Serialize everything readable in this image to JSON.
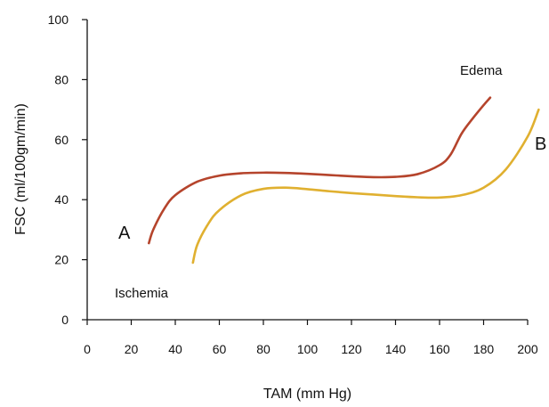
{
  "chart_data": {
    "type": "line",
    "xlabel": "TAM (mm Hg)",
    "ylabel": "FSC (ml/100gm/min)",
    "xlim": [
      0,
      200
    ],
    "ylim": [
      0,
      100
    ],
    "xticks": [
      0,
      20,
      40,
      60,
      80,
      100,
      120,
      140,
      160,
      180,
      200
    ],
    "yticks": [
      0,
      20,
      40,
      60,
      80,
      100
    ],
    "grid": false,
    "legend": "none",
    "series": [
      {
        "name": "A",
        "color": "#b5442c",
        "x": [
          28,
          30,
          35,
          40,
          50,
          60,
          70,
          80,
          90,
          100,
          110,
          120,
          130,
          140,
          150,
          160,
          165,
          170,
          175,
          180,
          183
        ],
        "y": [
          25.5,
          30,
          37,
          41.5,
          46,
          48,
          48.8,
          49,
          48.9,
          48.6,
          48.2,
          47.8,
          47.5,
          47.6,
          48.5,
          51.5,
          55,
          62,
          67,
          71.5,
          74
        ]
      },
      {
        "name": "B",
        "color": "#e0b030",
        "x": [
          48,
          50,
          55,
          60,
          70,
          80,
          90,
          100,
          110,
          120,
          130,
          140,
          150,
          160,
          170,
          180,
          190,
          200,
          205
        ],
        "y": [
          19,
          25,
          32,
          36.5,
          41.5,
          43.6,
          44,
          43.5,
          42.8,
          42.2,
          41.7,
          41.2,
          40.8,
          40.7,
          41.5,
          44,
          50,
          61,
          70
        ]
      }
    ],
    "annotations": [
      {
        "text": "A",
        "size": "large"
      },
      {
        "text": "B",
        "size": "large"
      },
      {
        "text": "Edema",
        "size": "small"
      },
      {
        "text": "Ischemia",
        "size": "small"
      }
    ]
  }
}
